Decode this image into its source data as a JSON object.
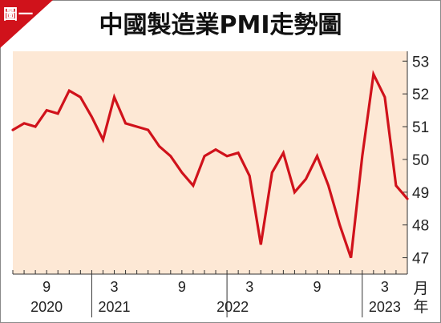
{
  "badge": "圖一",
  "chart_data": {
    "type": "line",
    "title": "中國製造業PMI走勢圖",
    "ylim": [
      46.5,
      53.3
    ],
    "yticks": [
      47,
      48,
      49,
      50,
      51,
      52,
      53
    ],
    "x_unit": "月",
    "year_unit": "年",
    "month_ticks": [
      {
        "index": 3,
        "label": "9"
      },
      {
        "index": 9,
        "label": "3"
      },
      {
        "index": 15,
        "label": "9"
      },
      {
        "index": 21,
        "label": "3"
      },
      {
        "index": 27,
        "label": "9"
      },
      {
        "index": 33,
        "label": "3"
      }
    ],
    "year_labels": [
      {
        "index": 3,
        "label": "2020"
      },
      {
        "index": 9,
        "label": "2021"
      },
      {
        "index": 19.5,
        "label": "2022"
      },
      {
        "index": 33,
        "label": "2023"
      }
    ],
    "x": [
      "2020-06",
      "2020-07",
      "2020-08",
      "2020-09",
      "2020-10",
      "2020-11",
      "2020-12",
      "2021-01",
      "2021-02",
      "2021-03",
      "2021-04",
      "2021-05",
      "2021-06",
      "2021-07",
      "2021-08",
      "2021-09",
      "2021-10",
      "2021-11",
      "2021-12",
      "2022-01",
      "2022-02",
      "2022-03",
      "2022-04",
      "2022-05",
      "2022-06",
      "2022-07",
      "2022-08",
      "2022-09",
      "2022-10",
      "2022-11",
      "2022-12",
      "2023-01",
      "2023-02",
      "2023-03",
      "2023-04",
      "2023-05"
    ],
    "series": [
      {
        "color": "#d0121b",
        "values": [
          50.9,
          51.1,
          51.0,
          51.5,
          51.4,
          52.1,
          51.9,
          51.3,
          50.6,
          51.9,
          51.1,
          51.0,
          50.9,
          50.4,
          50.1,
          49.6,
          49.2,
          50.1,
          50.3,
          50.1,
          50.2,
          49.5,
          47.4,
          49.6,
          50.2,
          49.0,
          49.4,
          50.1,
          49.2,
          48.0,
          47.0,
          50.1,
          52.6,
          51.9,
          49.2,
          48.8
        ]
      }
    ],
    "grid": false
  }
}
